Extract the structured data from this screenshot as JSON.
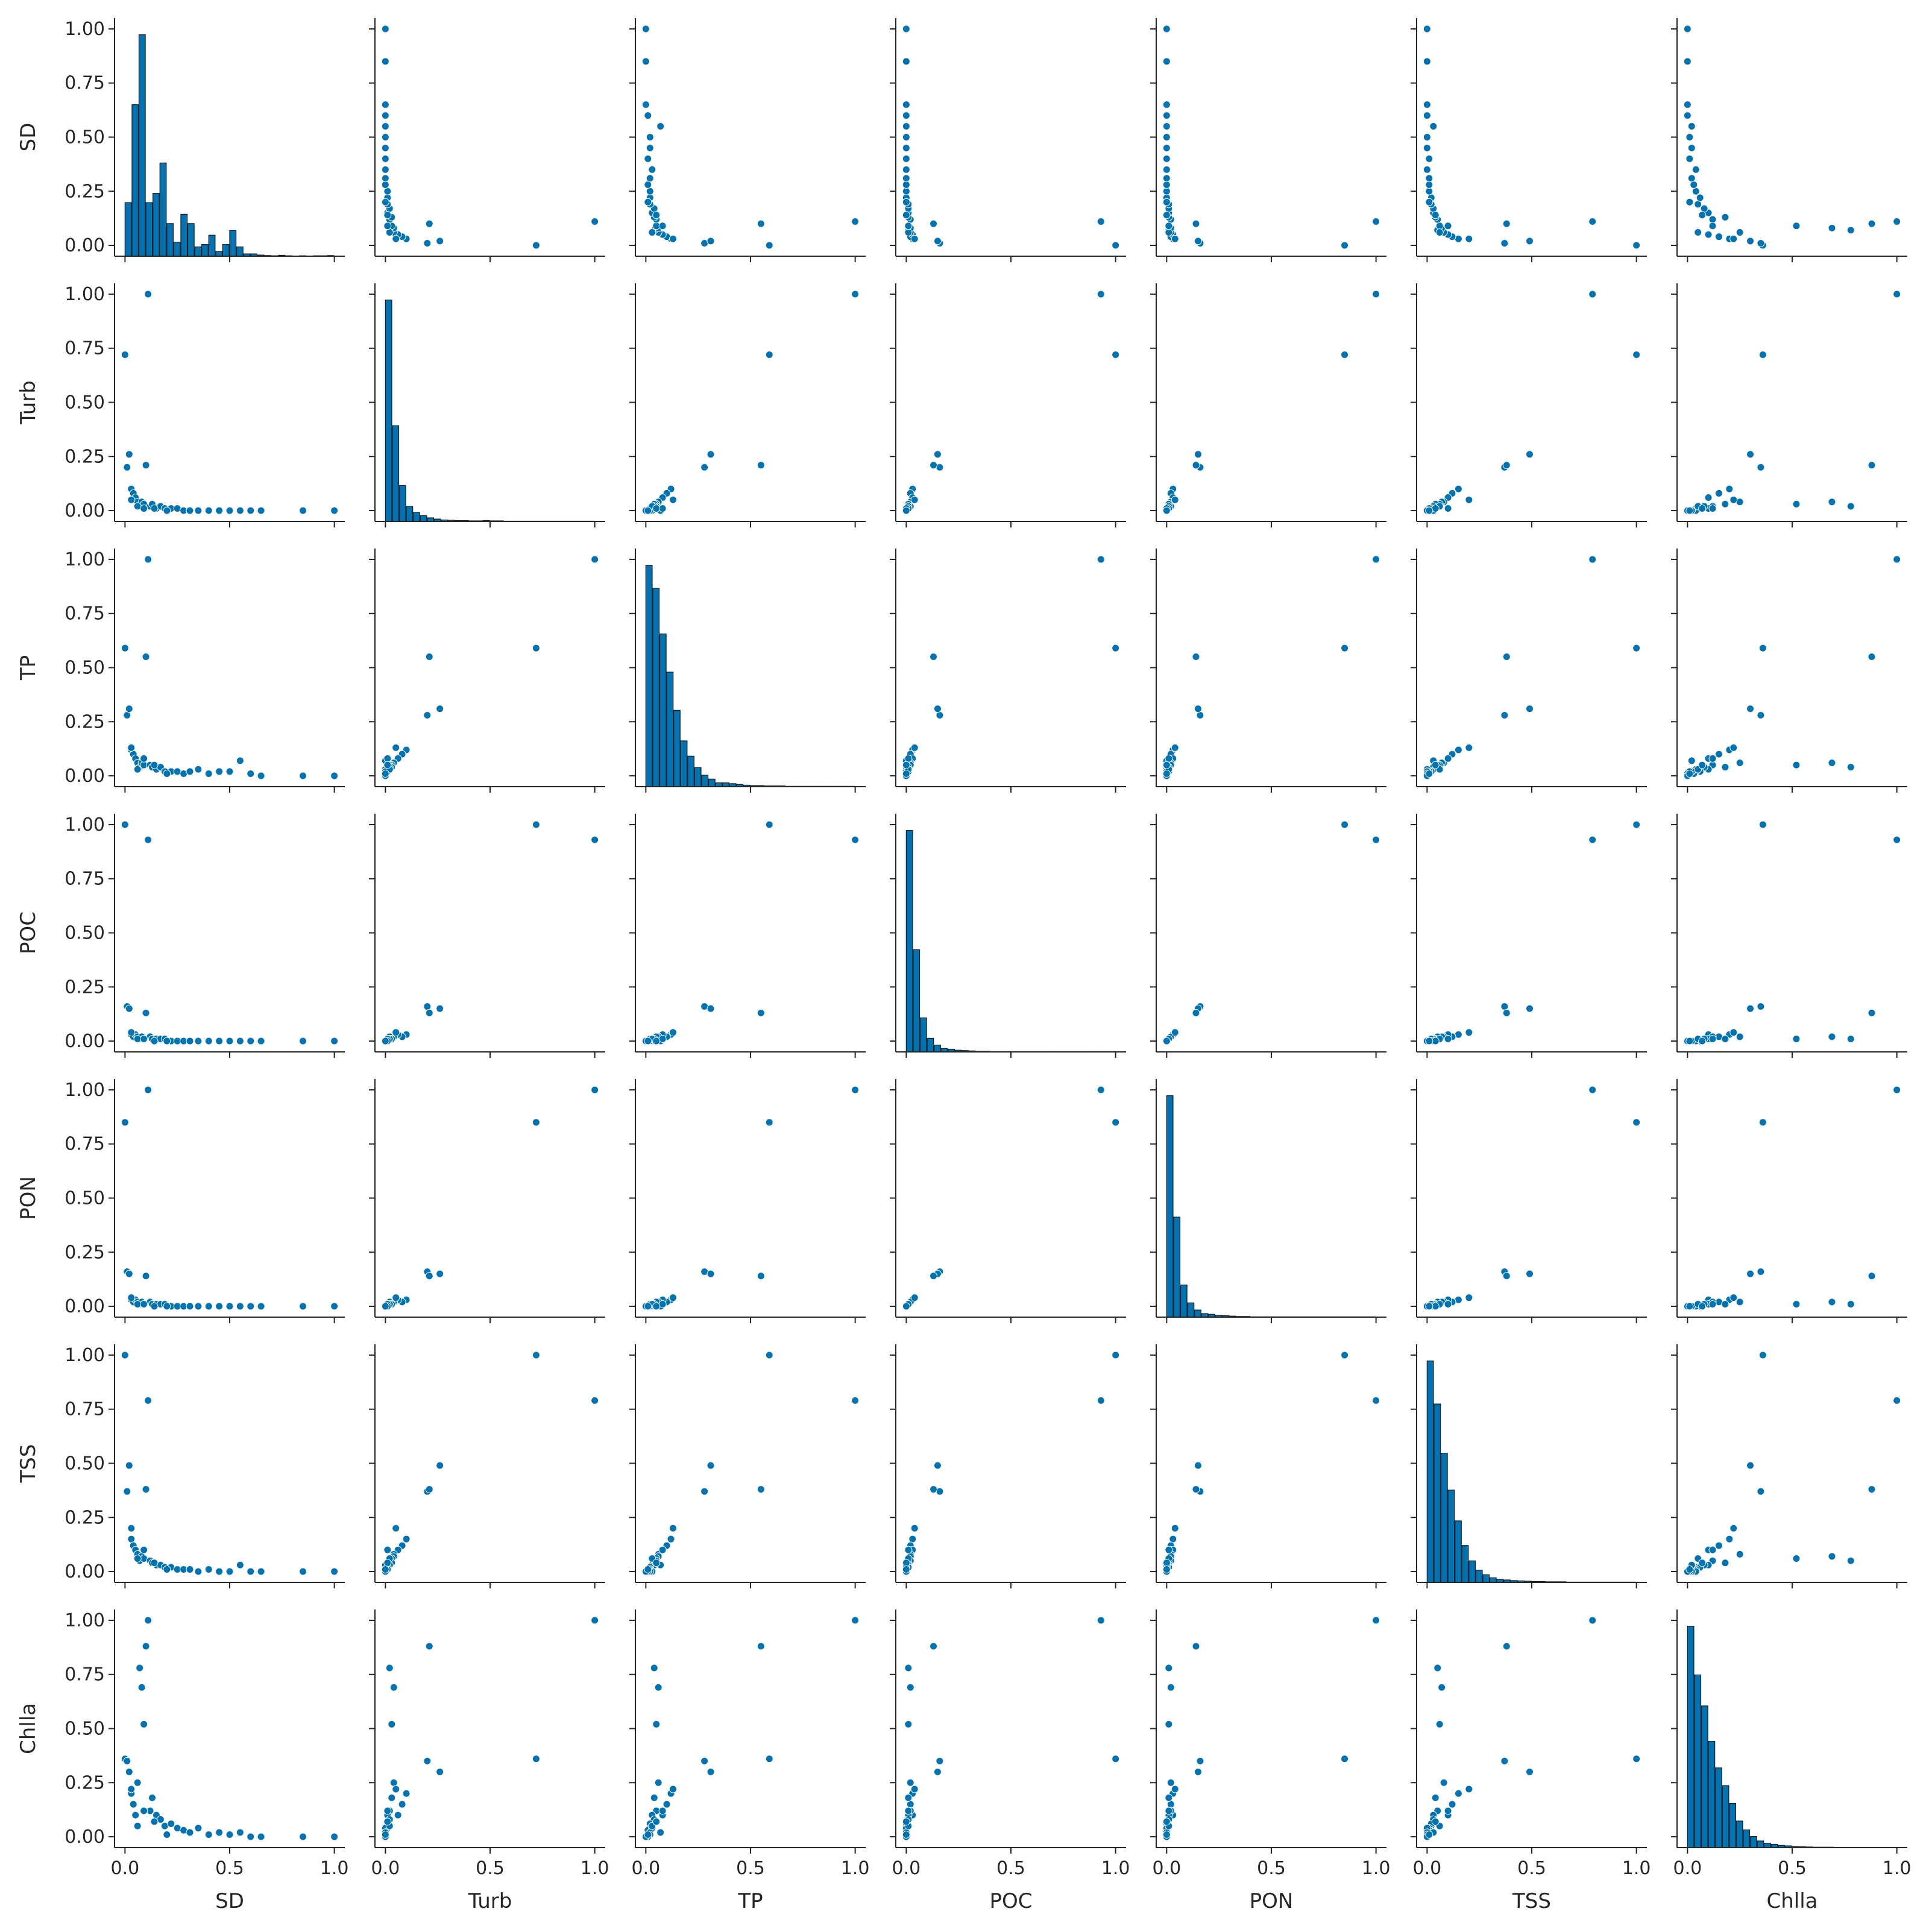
{
  "chart_data": {
    "type": "scatter",
    "kind": "pair-plot",
    "diagonal": "histogram",
    "color": "#0173b2",
    "variables": [
      "SD",
      "Turb",
      "TP",
      "POC",
      "PON",
      "TSS",
      "Chlla"
    ],
    "xlim": [
      -0.05,
      1.05
    ],
    "ylim": [
      -0.05,
      1.05
    ],
    "x_ticks": [
      "0.0",
      "0.5",
      "1.0"
    ],
    "y_ticks": [
      "0.00",
      "0.25",
      "0.50",
      "0.75",
      "1.00"
    ],
    "grid": false,
    "legend": "none",
    "values": {
      "SD": [
        0.0,
        0.01,
        0.02,
        0.03,
        0.04,
        0.05,
        0.06,
        0.07,
        0.08,
        0.09,
        0.1,
        0.11,
        0.12,
        0.13,
        0.15,
        0.17,
        0.19,
        0.22,
        0.25,
        0.28,
        0.31,
        0.35,
        0.4,
        0.45,
        0.5,
        0.55,
        0.6,
        0.65,
        0.85,
        1.0,
        0.03,
        0.06,
        0.09,
        0.14,
        0.2
      ],
      "Turb": [
        0.72,
        0.2,
        0.26,
        0.1,
        0.08,
        0.06,
        0.04,
        0.02,
        0.04,
        0.03,
        0.21,
        1.0,
        0.02,
        0.03,
        0.01,
        0.02,
        0.01,
        0.01,
        0.01,
        0.0,
        0.0,
        0.0,
        0.0,
        0.0,
        0.0,
        0.0,
        0.0,
        0.0,
        0.0,
        0.0,
        0.05,
        0.02,
        0.01,
        0.01,
        0.0
      ],
      "TP": [
        0.59,
        0.28,
        0.31,
        0.12,
        0.1,
        0.08,
        0.06,
        0.04,
        0.06,
        0.05,
        0.55,
        1.0,
        0.05,
        0.04,
        0.03,
        0.04,
        0.02,
        0.02,
        0.02,
        0.01,
        0.02,
        0.03,
        0.01,
        0.02,
        0.02,
        0.07,
        0.01,
        0.0,
        0.0,
        0.0,
        0.13,
        0.03,
        0.08,
        0.05,
        0.01
      ],
      "POC": [
        1.0,
        0.16,
        0.15,
        0.03,
        0.02,
        0.03,
        0.02,
        0.01,
        0.02,
        0.01,
        0.13,
        0.93,
        0.02,
        0.01,
        0.01,
        0.01,
        0.01,
        0.0,
        0.0,
        0.0,
        0.0,
        0.0,
        0.0,
        0.0,
        0.0,
        0.0,
        0.0,
        0.0,
        0.0,
        0.0,
        0.04,
        0.01,
        0.01,
        0.0,
        0.0
      ],
      "PON": [
        0.85,
        0.16,
        0.15,
        0.03,
        0.02,
        0.03,
        0.02,
        0.01,
        0.02,
        0.01,
        0.14,
        1.0,
        0.02,
        0.01,
        0.01,
        0.01,
        0.01,
        0.0,
        0.0,
        0.0,
        0.0,
        0.0,
        0.0,
        0.0,
        0.0,
        0.0,
        0.0,
        0.0,
        0.0,
        0.0,
        0.04,
        0.01,
        0.01,
        0.0,
        0.0
      ],
      "TSS": [
        1.0,
        0.37,
        0.49,
        0.15,
        0.12,
        0.1,
        0.08,
        0.05,
        0.07,
        0.06,
        0.38,
        0.79,
        0.05,
        0.04,
        0.03,
        0.03,
        0.02,
        0.02,
        0.01,
        0.01,
        0.01,
        0.0,
        0.01,
        0.0,
        0.0,
        0.03,
        0.0,
        0.0,
        0.0,
        0.0,
        0.2,
        0.06,
        0.1,
        0.04,
        0.01
      ],
      "Chlla": [
        0.36,
        0.35,
        0.3,
        0.2,
        0.15,
        0.1,
        0.25,
        0.78,
        0.69,
        0.52,
        0.88,
        1.0,
        0.12,
        0.18,
        0.1,
        0.08,
        0.05,
        0.06,
        0.04,
        0.03,
        0.02,
        0.04,
        0.01,
        0.02,
        0.01,
        0.02,
        0.0,
        0.0,
        0.0,
        0.0,
        0.22,
        0.05,
        0.12,
        0.07,
        0.01
      ]
    },
    "histograms": {
      "SD": [
        0.23,
        0.65,
        0.95,
        0.23,
        0.27,
        0.4,
        0.14,
        0.06,
        0.18,
        0.14,
        0.04,
        0.05,
        0.09,
        0.02,
        0.05,
        0.11,
        0.04,
        0.01,
        0.01,
        0.005,
        0.003,
        0.002,
        0.004,
        0.002,
        0.001,
        0.002,
        0.001,
        0.002,
        0.002,
        0.003
      ],
      "Turb": [
        0.74,
        0.32,
        0.12,
        0.05,
        0.03,
        0.02,
        0.012,
        0.008,
        0.005,
        0.004,
        0.003,
        0.003,
        0.002,
        0.002,
        0.003,
        0.002,
        0.002,
        0.001,
        0.001,
        0.001,
        0.001,
        0.001,
        0.001,
        0.001,
        0.001,
        0.001,
        0.001,
        0.001,
        0.001,
        0.001
      ],
      "TP": [
        0.58,
        0.52,
        0.4,
        0.3,
        0.2,
        0.12,
        0.08,
        0.05,
        0.03,
        0.02,
        0.01,
        0.01,
        0.008,
        0.006,
        0.004,
        0.003,
        0.003,
        0.002,
        0.002,
        0.002,
        0.001,
        0.001,
        0.001,
        0.001,
        0.001,
        0.001,
        0.001,
        0.001,
        0.001,
        0.001
      ],
      "POC": [
        0.65,
        0.3,
        0.1,
        0.04,
        0.02,
        0.01,
        0.008,
        0.005,
        0.004,
        0.003,
        0.002,
        0.002,
        0.001,
        0.001,
        0.001,
        0.001,
        0.001,
        0.001,
        0.001,
        0.001,
        0.001,
        0.001,
        0.001,
        0.001,
        0.001,
        0.001,
        0.001,
        0.001,
        0.001,
        0.001
      ],
      "PON": [
        0.62,
        0.28,
        0.09,
        0.04,
        0.02,
        0.01,
        0.008,
        0.005,
        0.004,
        0.003,
        0.002,
        0.002,
        0.001,
        0.001,
        0.001,
        0.001,
        0.001,
        0.001,
        0.001,
        0.001,
        0.001,
        0.001,
        0.001,
        0.001,
        0.001,
        0.001,
        0.001,
        0.001,
        0.001,
        0.001
      ],
      "TSS": [
        0.72,
        0.58,
        0.42,
        0.3,
        0.2,
        0.12,
        0.07,
        0.04,
        0.025,
        0.015,
        0.01,
        0.008,
        0.006,
        0.005,
        0.004,
        0.003,
        0.003,
        0.002,
        0.002,
        0.002,
        0.001,
        0.001,
        0.001,
        0.001,
        0.001,
        0.001,
        0.001,
        0.001,
        0.001,
        0.001
      ],
      "Chlla": [
        1.0,
        0.78,
        0.64,
        0.48,
        0.36,
        0.28,
        0.2,
        0.12,
        0.08,
        0.05,
        0.03,
        0.02,
        0.015,
        0.01,
        0.008,
        0.005,
        0.004,
        0.003,
        0.002,
        0.002,
        0.002,
        0.001,
        0.001,
        0.001,
        0.001,
        0.001,
        0.001,
        0.001,
        0.001,
        0.001
      ]
    }
  }
}
